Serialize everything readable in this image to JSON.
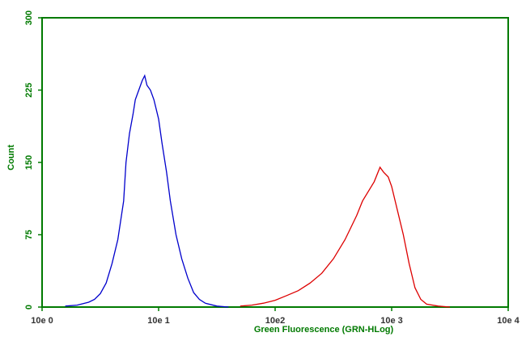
{
  "chart_data": {
    "type": "line",
    "log_x": true,
    "x_label": "Green Fluorescence (GRN-HLog)",
    "y_label": "Count",
    "axis_color": "#007a00",
    "xlim": [
      1,
      10000
    ],
    "xticks": [
      {
        "value": 1,
        "label": "10e 0"
      },
      {
        "value": 10,
        "label": "10e 1"
      },
      {
        "value": 100,
        "label": "10e2"
      },
      {
        "value": 1000,
        "label": "10e 3"
      },
      {
        "value": 10000,
        "label": "10e 4"
      }
    ],
    "ylim": [
      0,
      300
    ],
    "yticks": [
      0,
      75,
      150,
      225,
      300
    ],
    "series": [
      {
        "color": "#0000cc",
        "x": [
          1.58,
          2.0,
          2.51,
          2.82,
          3.16,
          3.55,
          3.98,
          4.47,
          5.01,
          5.25,
          5.62,
          6.03,
          6.31,
          6.76,
          7.24,
          7.59,
          7.94,
          8.51,
          9.12,
          10,
          10.7,
          11.7,
          12.6,
          14.1,
          15.8,
          17.8,
          20,
          22.4,
          25.1,
          31.6,
          39.8
        ],
        "values": [
          1,
          2,
          5,
          8,
          14,
          25,
          45,
          70,
          110,
          150,
          180,
          200,
          215,
          225,
          235,
          240,
          230,
          225,
          215,
          195,
          170,
          140,
          110,
          75,
          50,
          30,
          15,
          8,
          4,
          1,
          0
        ]
      },
      {
        "color": "#dd0000",
        "x": [
          50.1,
          63.1,
          79.4,
          100,
          126,
          158,
          200,
          251,
          316,
          398,
          501,
          562,
          631,
          708,
          794,
          851,
          933,
          1000,
          1122,
          1259,
          1413,
          1585,
          1778,
          1995,
          2512,
          3162
        ],
        "values": [
          1,
          2,
          4,
          7,
          12,
          17,
          25,
          35,
          50,
          70,
          95,
          110,
          120,
          130,
          145,
          140,
          135,
          125,
          100,
          75,
          45,
          20,
          8,
          3,
          1,
          0
        ]
      }
    ]
  }
}
